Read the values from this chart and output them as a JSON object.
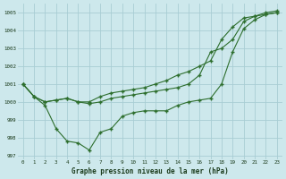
{
  "title": "Graphe pression niveau de la mer (hPa)",
  "background_color": "#cde8ec",
  "grid_color": "#a8cdd4",
  "line_color": "#2d6e2d",
  "xlim": [
    -0.5,
    23.5
  ],
  "ylim": [
    996.8,
    1005.5
  ],
  "yticks": [
    997,
    998,
    999,
    1000,
    1001,
    1002,
    1003,
    1004,
    1005
  ],
  "xticks": [
    0,
    1,
    2,
    3,
    4,
    5,
    6,
    7,
    8,
    9,
    10,
    11,
    12,
    13,
    14,
    15,
    16,
    17,
    18,
    19,
    20,
    21,
    22,
    23
  ],
  "series1": [
    1001.0,
    1000.3,
    1000.0,
    1000.1,
    1000.2,
    1000.0,
    1000.0,
    1000.3,
    1000.5,
    1000.6,
    1000.7,
    1000.8,
    1001.0,
    1001.2,
    1001.5,
    1001.7,
    1002.0,
    1002.3,
    1003.5,
    1004.2,
    1004.7,
    1004.8,
    1005.0,
    1005.1
  ],
  "series2": [
    1001.0,
    1000.3,
    1000.0,
    1000.1,
    1000.2,
    1000.0,
    999.9,
    1000.0,
    1000.2,
    1000.3,
    1000.4,
    1000.5,
    1000.6,
    1000.7,
    1000.8,
    1001.0,
    1001.5,
    1002.8,
    1003.0,
    1003.5,
    1004.5,
    1004.8,
    1004.9,
    1005.0
  ],
  "series3": [
    1001.0,
    1000.3,
    999.8,
    998.5,
    997.8,
    997.7,
    997.3,
    998.3,
    998.5,
    999.2,
    999.4,
    999.5,
    999.5,
    999.5,
    999.8,
    1000.0,
    1000.1,
    1000.2,
    1001.0,
    1002.8,
    1004.1,
    1004.6,
    1004.9,
    1005.0
  ]
}
